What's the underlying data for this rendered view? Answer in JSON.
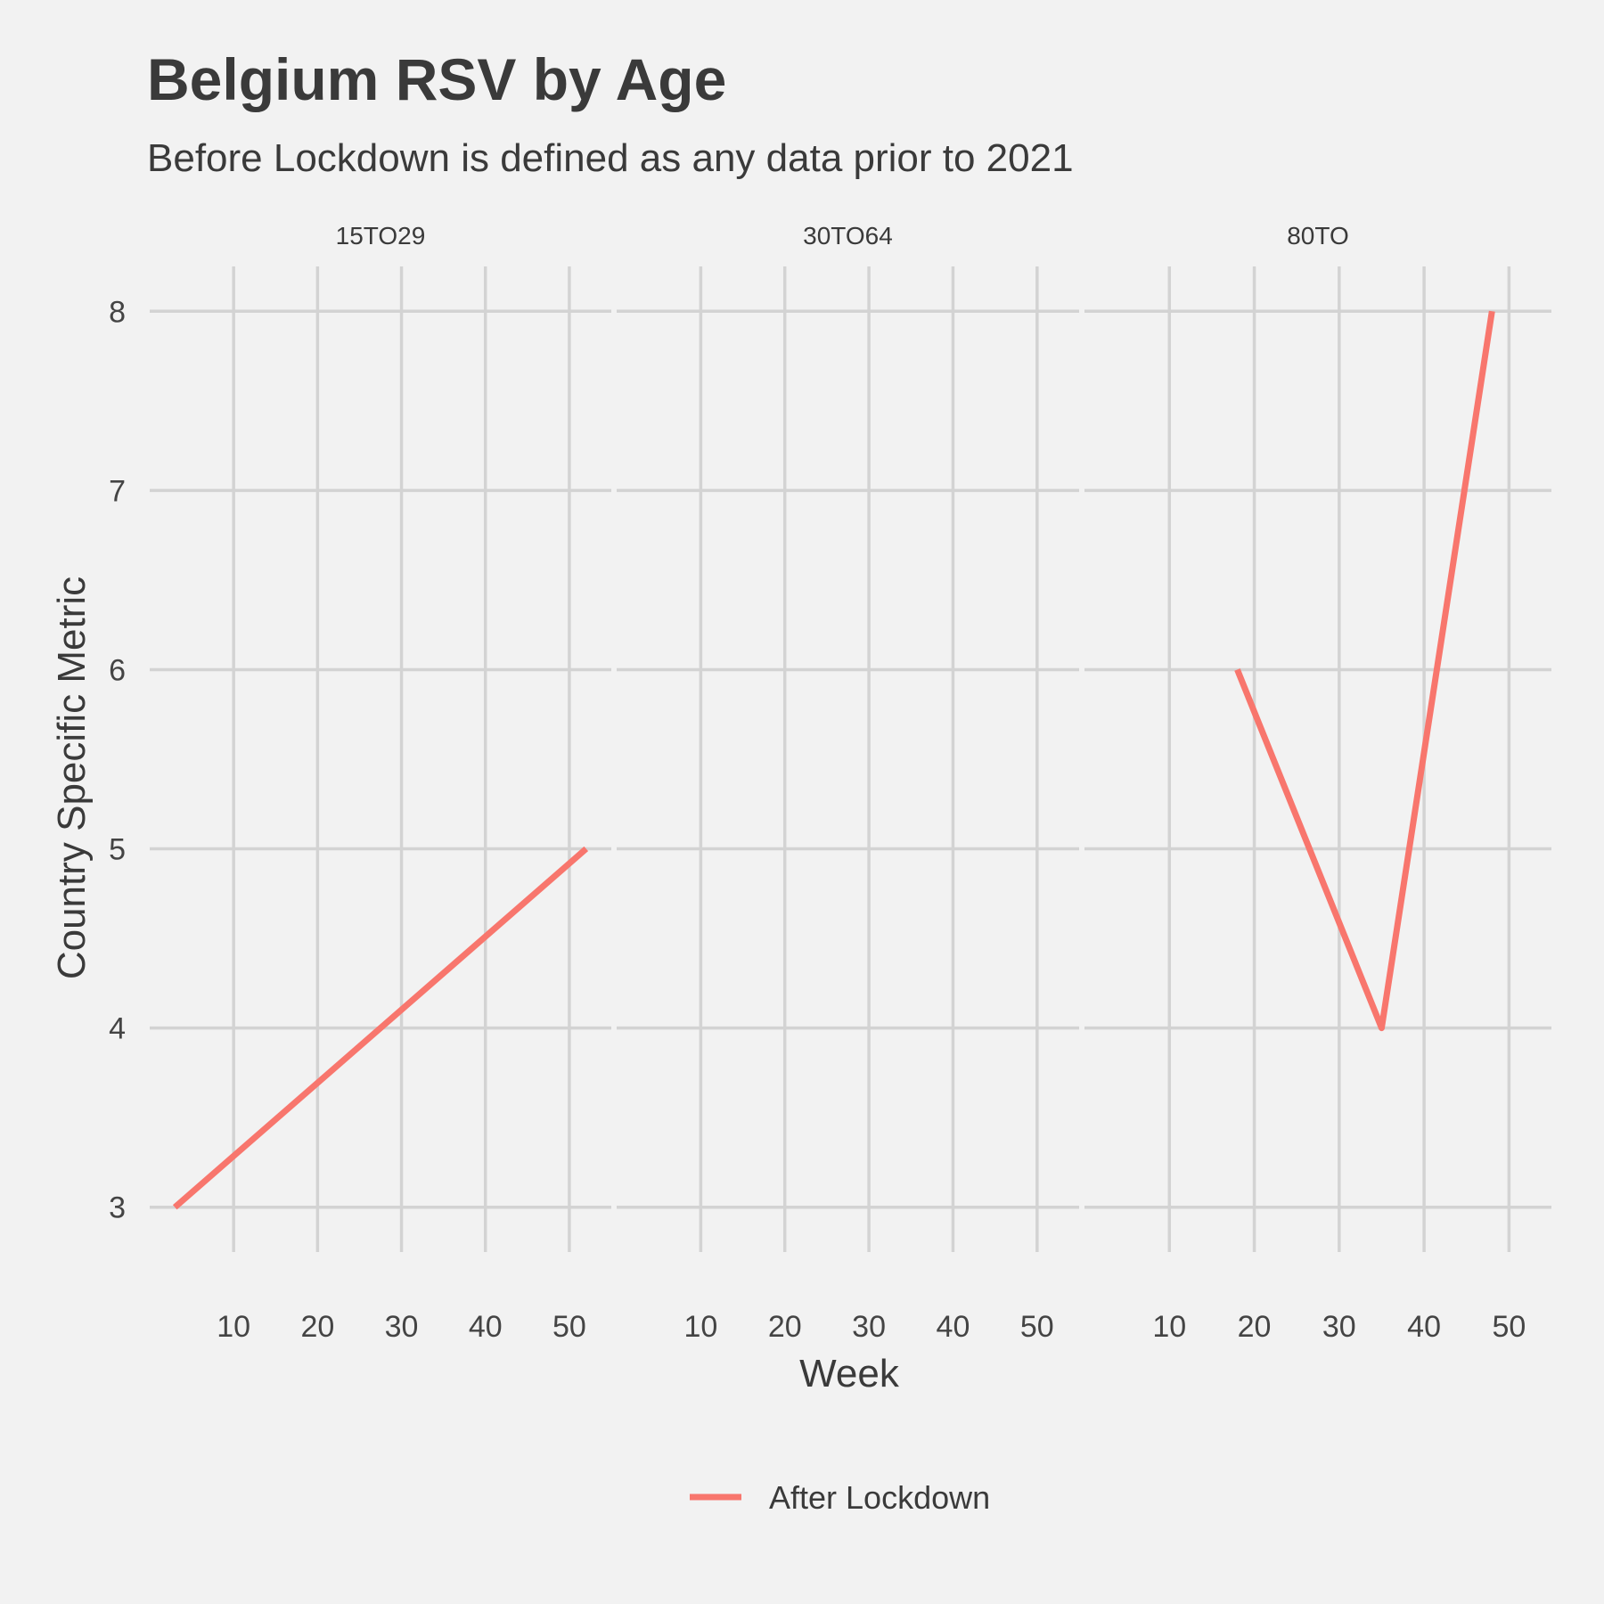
{
  "chart_data": {
    "type": "line",
    "title": "Belgium RSV by Age",
    "subtitle": "Before Lockdown is defined as any data prior to 2021",
    "xlabel": "Week",
    "ylabel": "Country Specific Metric",
    "xlim": [
      0,
      55
    ],
    "ylim": [
      2.75,
      8.25
    ],
    "x_ticks": [
      10,
      20,
      30,
      40,
      50
    ],
    "y_ticks": [
      3,
      4,
      5,
      6,
      7,
      8
    ],
    "grid": true,
    "legend_position": "bottom",
    "series_color": "#f8766d",
    "legend": [
      {
        "label": "After Lockdown",
        "color": "#f8766d"
      }
    ],
    "facets": [
      {
        "label": "15TO29",
        "series": [
          {
            "name": "After Lockdown",
            "x": [
              3,
              52
            ],
            "y": [
              3,
              5
            ]
          }
        ]
      },
      {
        "label": "30TO64",
        "series": []
      },
      {
        "label": "80TO",
        "series": [
          {
            "name": "After Lockdown",
            "x": [
              18,
              35,
              48
            ],
            "y": [
              6,
              4,
              8
            ]
          }
        ]
      }
    ]
  }
}
